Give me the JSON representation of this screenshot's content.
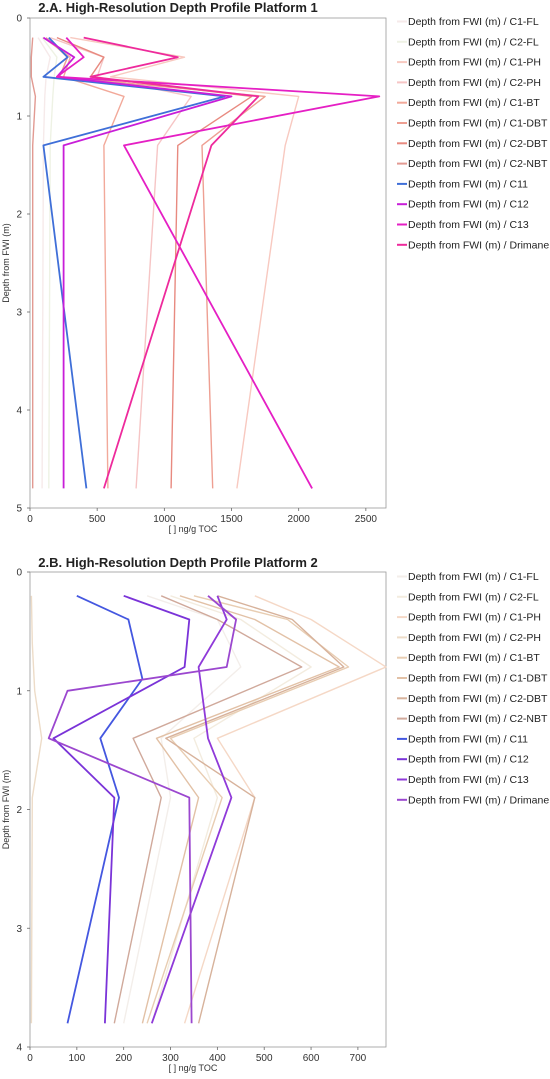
{
  "chart_data": [
    {
      "type": "line",
      "title": "2.A. High-Resolution Depth Profile Platform 1",
      "xlabel": "[ ] ng/g TOC",
      "ylabel": "Depth from FWI (m)",
      "xlim": [
        0,
        2650
      ],
      "ylim": [
        0,
        5
      ],
      "y_inverted": true,
      "xticks": [
        0,
        500,
        1000,
        1500,
        2000,
        2500
      ],
      "yticks": [
        0,
        1,
        2,
        3,
        4,
        5
      ],
      "legend_position": "right",
      "series": [
        {
          "name": "Depth from FWI (m) / C1-FL",
          "color": "#f6eaea",
          "points": [
            [
              60,
              0.2
            ],
            [
              150,
              0.4
            ],
            [
              120,
              0.6
            ],
            [
              110,
              0.8
            ],
            [
              100,
              1.3
            ],
            [
              90,
              4.8
            ]
          ]
        },
        {
          "name": "Depth from FWI (m) / C2-FL",
          "color": "#eef2e4",
          "points": [
            [
              90,
              0.2
            ],
            [
              200,
              0.4
            ],
            [
              180,
              0.6
            ],
            [
              170,
              0.8
            ],
            [
              150,
              1.3
            ],
            [
              140,
              4.8
            ]
          ]
        },
        {
          "name": "Depth from FWI (m) / C1-PH",
          "color": "#f8c9c0",
          "points": [
            [
              300,
              0.2
            ],
            [
              1150,
              0.4
            ],
            [
              600,
              0.6
            ],
            [
              2000,
              0.8
            ],
            [
              1900,
              1.3
            ],
            [
              1540,
              4.8
            ]
          ]
        },
        {
          "name": "Depth from FWI (m) / C2-PH",
          "color": "#f6c5c5",
          "points": [
            [
              150,
              0.2
            ],
            [
              550,
              0.4
            ],
            [
              500,
              0.6
            ],
            [
              1200,
              0.8
            ],
            [
              950,
              1.3
            ],
            [
              790,
              4.8
            ]
          ]
        },
        {
          "name": "Depth from FWI (m) / C1-BT",
          "color": "#f2a99a",
          "points": [
            [
              100,
              0.2
            ],
            [
              300,
              0.4
            ],
            [
              250,
              0.6
            ],
            [
              700,
              0.8
            ],
            [
              550,
              1.3
            ],
            [
              580,
              4.8
            ]
          ]
        },
        {
          "name": "Depth from FWI (m) / C1-DBT",
          "color": "#ee9f92",
          "points": [
            [
              120,
              0.2
            ],
            [
              280,
              0.4
            ],
            [
              220,
              0.6
            ],
            [
              1750,
              0.8
            ],
            [
              1280,
              1.3
            ],
            [
              1360,
              4.8
            ]
          ]
        },
        {
          "name": "Depth from FWI (m) / C2-DBT",
          "color": "#e88a80",
          "points": [
            [
              200,
              0.2
            ],
            [
              550,
              0.4
            ],
            [
              450,
              0.6
            ],
            [
              1650,
              0.8
            ],
            [
              1100,
              1.3
            ],
            [
              1050,
              4.8
            ]
          ]
        },
        {
          "name": "Depth from FWI (m) / C2-NBT",
          "color": "#e29a92",
          "points": [
            [
              20,
              0.2
            ],
            [
              10,
              0.4
            ],
            [
              10,
              0.6
            ],
            [
              40,
              0.8
            ],
            [
              20,
              1.3
            ],
            [
              20,
              4.8
            ]
          ]
        },
        {
          "name": "Depth from FWI (m) / C11",
          "color": "#3f6fd8",
          "points": [
            [
              140,
              0.2
            ],
            [
              280,
              0.4
            ],
            [
              100,
              0.6
            ],
            [
              1450,
              0.8
            ],
            [
              100,
              1.3
            ],
            [
              420,
              4.8
            ]
          ]
        },
        {
          "name": "Depth from FWI (m) / C12",
          "color": "#c81ed8",
          "points": [
            [
              100,
              0.2
            ],
            [
              330,
              0.4
            ],
            [
              200,
              0.6
            ],
            [
              1500,
              0.8
            ],
            [
              250,
              1.3
            ],
            [
              250,
              4.8
            ]
          ]
        },
        {
          "name": "Depth from FWI (m) / C13",
          "color": "#e51fc4",
          "points": [
            [
              270,
              0.2
            ],
            [
              400,
              0.4
            ],
            [
              200,
              0.6
            ],
            [
              2600,
              0.8
            ],
            [
              700,
              1.3
            ],
            [
              2100,
              4.8
            ]
          ]
        },
        {
          "name": "Depth from FWI (m) / Drimane",
          "color": "#ee2a9c",
          "points": [
            [
              400,
              0.2
            ],
            [
              1100,
              0.4
            ],
            [
              450,
              0.6
            ],
            [
              1700,
              0.8
            ],
            [
              1350,
              1.3
            ],
            [
              550,
              4.8
            ]
          ]
        }
      ]
    },
    {
      "type": "line",
      "title": "2.B. High-Resolution Depth Profile Platform 2",
      "xlabel": "[ ] ng/g TOC",
      "ylabel": "Depth from FWI (m)",
      "xlim": [
        0,
        760
      ],
      "ylim": [
        0,
        4
      ],
      "y_inverted": true,
      "xticks": [
        0,
        100,
        200,
        300,
        400,
        500,
        600,
        700
      ],
      "yticks": [
        0,
        1,
        2,
        3,
        4
      ],
      "legend_position": "right",
      "series": [
        {
          "name": "Depth from FWI (m) / C1-FL",
          "color": "#f3eeea",
          "points": [
            [
              250,
              0.2
            ],
            [
              400,
              0.4
            ],
            [
              450,
              0.8
            ],
            [
              280,
              1.4
            ],
            [
              300,
              1.9
            ],
            [
              200,
              3.8
            ]
          ]
        },
        {
          "name": "Depth from FWI (m) / C2-FL",
          "color": "#f3ecdf",
          "points": [
            [
              300,
              0.2
            ],
            [
              450,
              0.4
            ],
            [
              600,
              0.8
            ],
            [
              350,
              1.4
            ],
            [
              400,
              1.9
            ],
            [
              260,
              3.8
            ]
          ]
        },
        {
          "name": "Depth from FWI (m) / C1-PH",
          "color": "#f5d8c6",
          "points": [
            [
              480,
              0.2
            ],
            [
              600,
              0.4
            ],
            [
              760,
              0.8
            ],
            [
              400,
              1.4
            ],
            [
              480,
              1.9
            ],
            [
              330,
              3.8
            ]
          ]
        },
        {
          "name": "Depth from FWI (m) / C2-PH",
          "color": "#eddcc8",
          "points": [
            [
              3,
              0.2
            ],
            [
              5,
              0.6
            ],
            [
              10,
              1.0
            ],
            [
              25,
              1.4
            ],
            [
              5,
              1.9
            ],
            [
              3,
              3.8
            ]
          ]
        },
        {
          "name": "Depth from FWI (m) / C1-BT",
          "color": "#e8cdb2",
          "points": [
            [
              350,
              0.2
            ],
            [
              550,
              0.4
            ],
            [
              680,
              0.8
            ],
            [
              300,
              1.4
            ],
            [
              410,
              1.9
            ],
            [
              250,
              3.8
            ]
          ]
        },
        {
          "name": "Depth from FWI (m) / C1-DBT",
          "color": "#e2c1a6",
          "points": [
            [
              320,
              0.2
            ],
            [
              480,
              0.4
            ],
            [
              660,
              0.8
            ],
            [
              270,
              1.4
            ],
            [
              360,
              1.9
            ],
            [
              240,
              3.8
            ]
          ]
        },
        {
          "name": "Depth from FWI (m) / C2-DBT",
          "color": "#d7b29b",
          "points": [
            [
              400,
              0.2
            ],
            [
              560,
              0.4
            ],
            [
              670,
              0.8
            ],
            [
              290,
              1.4
            ],
            [
              480,
              1.9
            ],
            [
              360,
              3.8
            ]
          ]
        },
        {
          "name": "Depth from FWI (m) / C2-NBT",
          "color": "#d0a99b",
          "points": [
            [
              280,
              0.2
            ],
            [
              400,
              0.4
            ],
            [
              580,
              0.8
            ],
            [
              220,
              1.4
            ],
            [
              280,
              1.9
            ],
            [
              180,
              3.8
            ]
          ]
        },
        {
          "name": "Depth from FWI (m) / C11",
          "color": "#4457e0",
          "points": [
            [
              100,
              0.2
            ],
            [
              210,
              0.4
            ],
            [
              240,
              0.9
            ],
            [
              150,
              1.4
            ],
            [
              190,
              1.9
            ],
            [
              80,
              3.8
            ]
          ]
        },
        {
          "name": "Depth from FWI (m) / C12",
          "color": "#7a33d8",
          "points": [
            [
              200,
              0.2
            ],
            [
              340,
              0.4
            ],
            [
              330,
              0.8
            ],
            [
              50,
              1.4
            ],
            [
              180,
              1.9
            ],
            [
              160,
              3.8
            ]
          ]
        },
        {
          "name": "Depth from FWI (m) / C13",
          "color": "#8f3ad9",
          "points": [
            [
              400,
              0.2
            ],
            [
              420,
              0.4
            ],
            [
              360,
              0.8
            ],
            [
              380,
              1.4
            ],
            [
              430,
              1.9
            ],
            [
              260,
              3.8
            ]
          ]
        },
        {
          "name": "Depth from FWI (m) / Drimane",
          "color": "#9b47cf",
          "points": [
            [
              380,
              0.2
            ],
            [
              440,
              0.4
            ],
            [
              420,
              0.8
            ],
            [
              80,
              1.0
            ],
            [
              40,
              1.4
            ],
            [
              340,
              1.9
            ],
            [
              345,
              3.8
            ]
          ]
        }
      ]
    }
  ]
}
